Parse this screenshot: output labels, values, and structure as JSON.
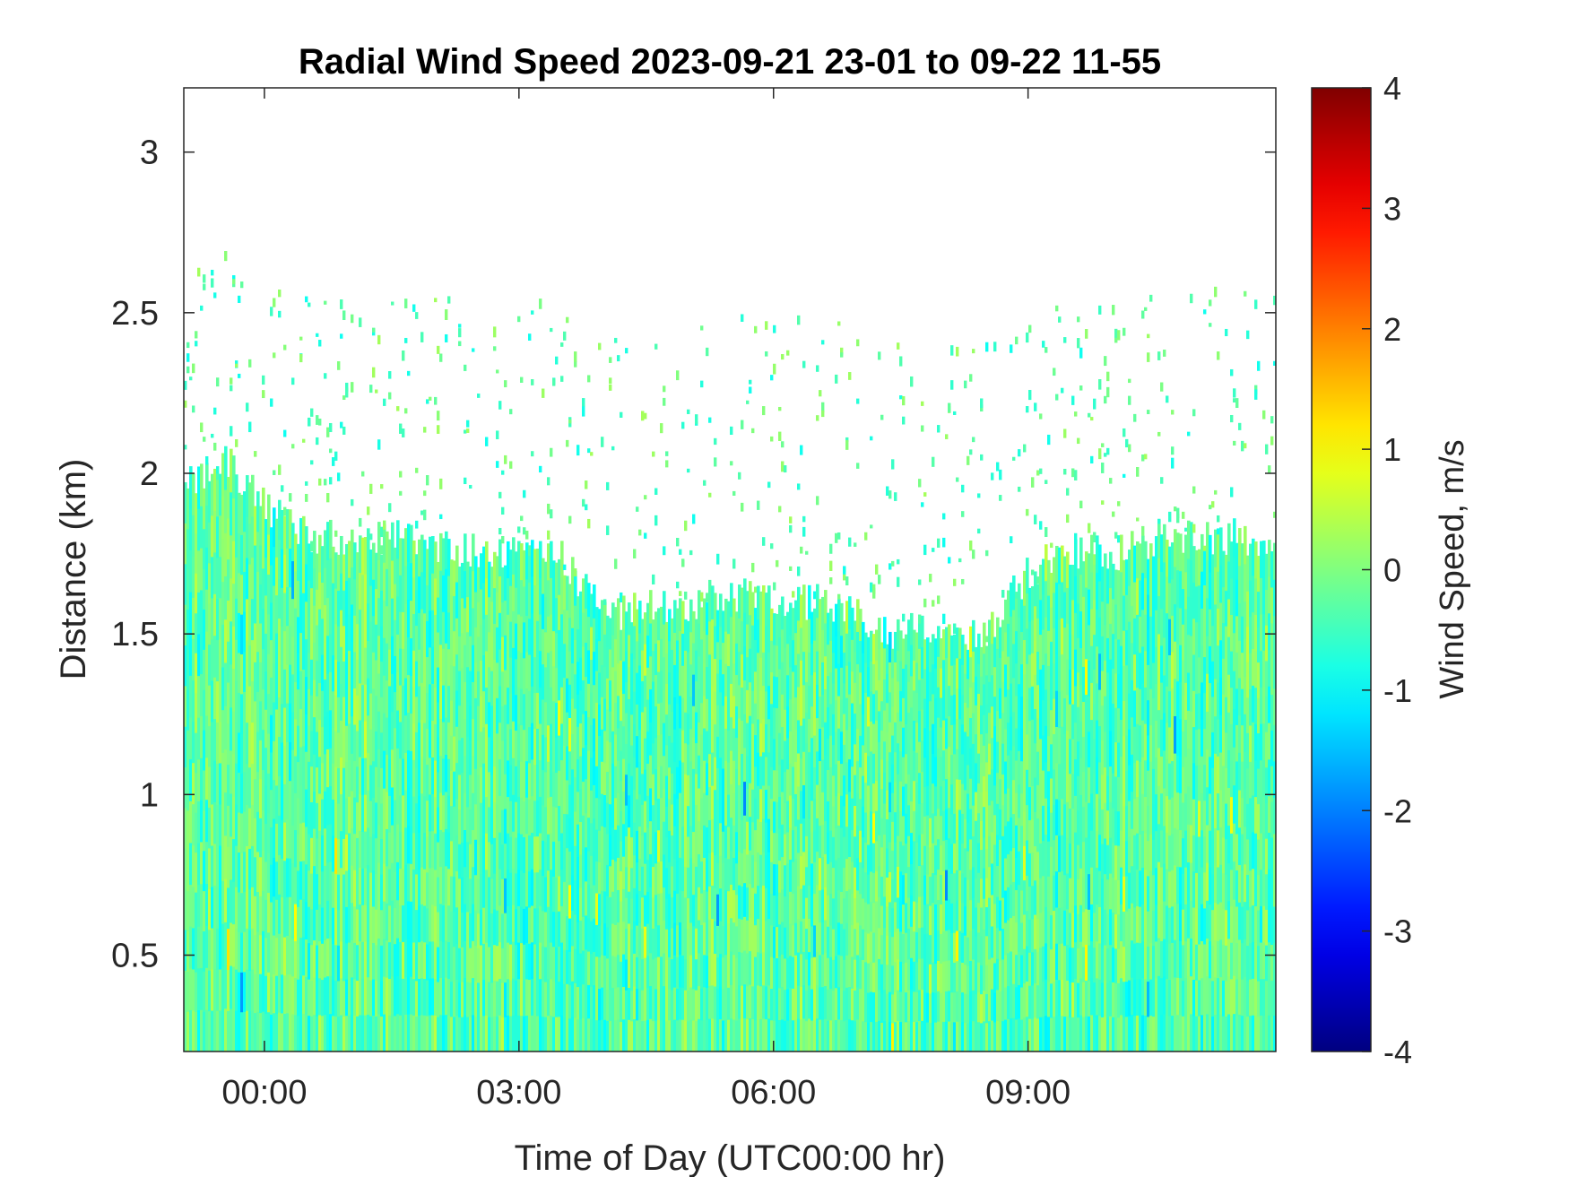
{
  "chart_data": {
    "type": "heatmap",
    "title": "Radial Wind Speed 2023-09-21 23-01 to 09-22 11-55",
    "xlabel": "Time of Day (UTC00:00 hr)",
    "ylabel": "Distance (km)",
    "colorbar_label": "Wind Speed, m/s",
    "x_unit": "hours relative to 2023-09-22 00:00 UTC",
    "xlim": [
      -0.95,
      11.92
    ],
    "ylim": [
      0.2,
      3.2
    ],
    "x_ticks": [
      0,
      3,
      6,
      9
    ],
    "x_tick_labels": [
      "00:00",
      "03:00",
      "06:00",
      "09:00"
    ],
    "y_ticks": [
      0.5,
      1,
      1.5,
      2,
      2.5,
      3
    ],
    "y_tick_labels": [
      "0.5",
      "1",
      "1.5",
      "2",
      "2.5",
      "3"
    ],
    "clim": [
      -4,
      4
    ],
    "colorbar_ticks": [
      -4,
      -3,
      -2,
      -1,
      0,
      1,
      2,
      3,
      4
    ],
    "colorbar_tick_labels": [
      "-4",
      "-3",
      "-2",
      "-1",
      "0",
      "1",
      "2",
      "3",
      "4"
    ],
    "colormap": "jet",
    "colormap_stops": [
      "#00008f",
      "#0000ff",
      "#00ffff",
      "#ffff00",
      "#ff0000",
      "#800000"
    ],
    "missing_color": "#ffffff",
    "typical_value_range": [
      -1.2,
      0.8
    ],
    "dominant_value": -0.3,
    "data_top_profile": {
      "description": "approximate maximum distance (km) of valid returns versus time",
      "x": [
        -0.95,
        -0.5,
        0.0,
        0.5,
        1.0,
        1.5,
        2.0,
        2.5,
        3.0,
        3.5,
        4.0,
        4.5,
        5.0,
        5.5,
        6.0,
        6.5,
        7.0,
        7.5,
        8.0,
        8.5,
        9.0,
        9.5,
        10.0,
        10.5,
        11.0,
        11.5,
        11.92
      ],
      "y": [
        1.95,
        2.05,
        1.9,
        1.8,
        1.8,
        1.8,
        1.78,
        1.75,
        1.75,
        1.75,
        1.55,
        1.58,
        1.6,
        1.62,
        1.6,
        1.6,
        1.55,
        1.5,
        1.52,
        1.48,
        1.7,
        1.75,
        1.75,
        1.8,
        1.8,
        1.8,
        1.8
      ]
    }
  }
}
